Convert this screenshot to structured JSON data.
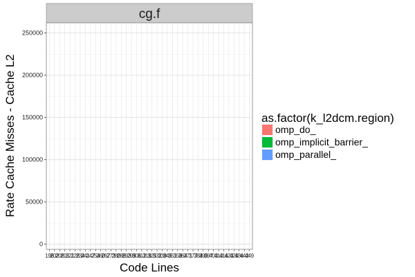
{
  "chart_data": {
    "type": "bar",
    "facet": "cg.f",
    "xlabel": "Code Lines",
    "ylabel": "Rate Cache Misses - Cache L2",
    "ylim": [
      0,
      250000
    ],
    "y_ticks": [
      "0",
      "50000",
      "100000",
      "150000",
      "200000",
      "250000"
    ],
    "x_ticks": [
      "196",
      "202",
      "208",
      "215",
      "221",
      "228",
      "234",
      "241",
      "247",
      "254",
      "260",
      "267",
      "273",
      "280",
      "286",
      "293",
      "299",
      "306",
      "312",
      "319",
      "325",
      "332",
      "338",
      "345",
      "351",
      "358",
      "364",
      "371",
      "377",
      "384",
      "390",
      "397",
      "403",
      "410",
      "416",
      "423",
      "429",
      "436",
      "442",
      "449"
    ],
    "series": [
      {
        "name": "omp_do_",
        "values": []
      },
      {
        "name": "omp_implicit_barrier_",
        "values": []
      },
      {
        "name": "omp_parallel_",
        "values": []
      }
    ],
    "legend": {
      "title": "as.factor(k_l2dcm.region)",
      "position": "right"
    },
    "grid": true,
    "colors": {
      "omp_do_": "#F8766D",
      "omp_implicit_barrier_": "#00BA38",
      "omp_parallel_": "#619CFF",
      "strip": "#CCCCCC",
      "gridline": "#E0E0E0"
    }
  }
}
